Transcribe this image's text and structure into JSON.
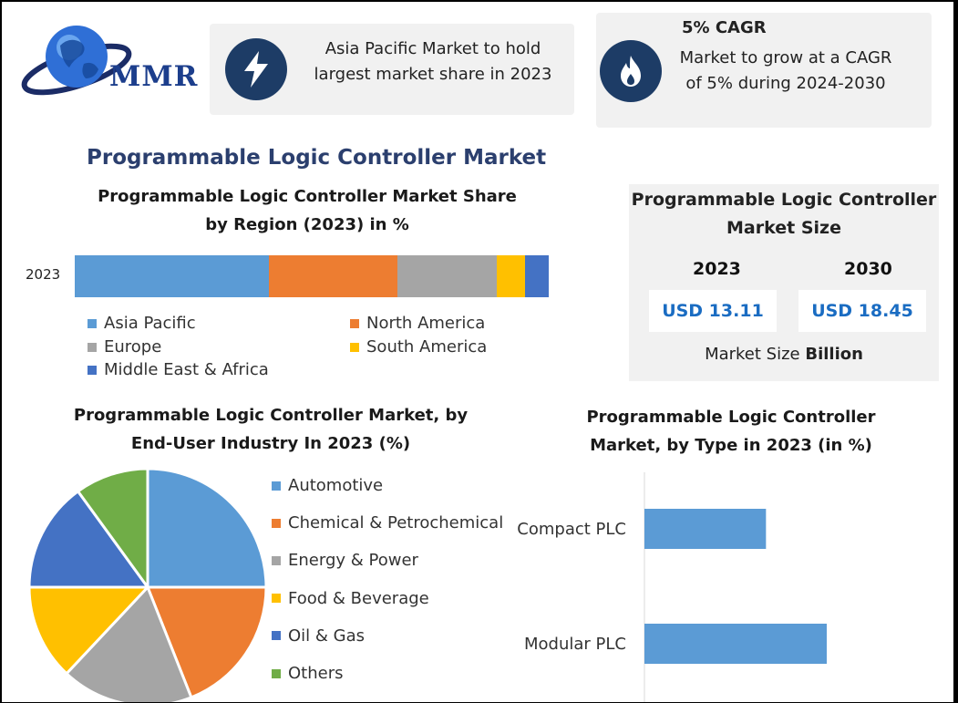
{
  "brand": {
    "logo_text": "MMR",
    "icon": "globe-logo-icon"
  },
  "highlights": {
    "region_text": "Asia Pacific Market to hold largest market share in 2023",
    "region_icon": "lightning-icon",
    "cagr_title": "5% CAGR",
    "cagr_text": "Market to grow at a CAGR of 5% during 2024-2030",
    "cagr_icon": "flame-icon",
    "icon_bg": "#1d3c66"
  },
  "main_title": "Programmable Logic Controller Market",
  "market_size": {
    "title": "Programmable Logic Controller Market Size",
    "years": [
      "2023",
      "2030"
    ],
    "values": [
      "USD 13.11",
      "USD 18.45"
    ],
    "unit_prefix": "Market Size ",
    "unit_bold": "Billion"
  },
  "chart_data": [
    {
      "type": "bar",
      "orientation": "horizontal-stacked",
      "title": "Programmable Logic Controller Market Share by Region (2023) in %",
      "categories": [
        "2023"
      ],
      "series": [
        {
          "name": "Asia Pacific",
          "values": [
            41
          ],
          "color": "#5b9bd5"
        },
        {
          "name": "North America",
          "values": [
            27
          ],
          "color": "#ed7d31"
        },
        {
          "name": "Europe",
          "values": [
            21
          ],
          "color": "#a5a5a5"
        },
        {
          "name": "South America",
          "values": [
            6
          ],
          "color": "#ffc000"
        },
        {
          "name": "Middle East & Africa",
          "values": [
            5
          ],
          "color": "#4472c4"
        }
      ],
      "legend": "bottom"
    },
    {
      "type": "pie",
      "title": "Programmable Logic Controller Market, by End-User Industry In 2023 (%)",
      "categories": [
        "Automotive",
        "Chemical & Petrochemical",
        "Energy & Power",
        "Food & Beverage",
        "Oil & Gas",
        "Others"
      ],
      "values": [
        25,
        19,
        18,
        13,
        15,
        10
      ],
      "colors": [
        "#5b9bd5",
        "#ed7d31",
        "#a5a5a5",
        "#ffc000",
        "#4472c4",
        "#70ad47"
      ],
      "legend": "right"
    },
    {
      "type": "bar",
      "orientation": "horizontal",
      "title": "Programmable Logic Controller Market, by Type in 2023 (in %)",
      "categories": [
        "Compact PLC",
        "Modular PLC"
      ],
      "values": [
        40,
        60
      ],
      "xlim": [
        0,
        75
      ],
      "color": "#5b9bd5"
    }
  ]
}
